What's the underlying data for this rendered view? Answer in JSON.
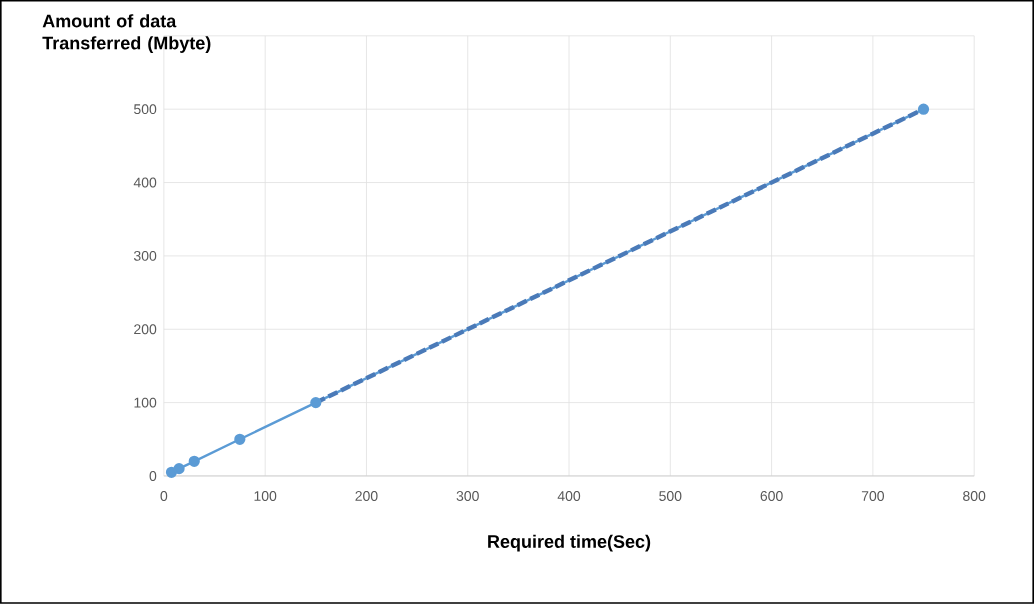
{
  "chart_data": {
    "type": "line",
    "ylabel": "Amount of data Transferred (Mbyte)",
    "xlabel": "Required  time(Sec)",
    "xlim": [
      0,
      800
    ],
    "xticks": [
      0,
      100,
      200,
      300,
      400,
      500,
      600,
      700,
      800
    ],
    "ylim": [
      0,
      600
    ],
    "yticks": [
      0,
      100,
      200,
      300,
      400,
      {
        "value": 500,
        "label": "500"
      },
      {
        "value": 600,
        "label": null
      }
    ],
    "grid": true,
    "marker": "circle",
    "series": [
      {
        "color": "#5b9bd5",
        "line_style": "solid",
        "x": [
          7.5,
          15,
          30,
          75,
          150,
          750
        ],
        "values": [
          5,
          10,
          20,
          50,
          100,
          500
        ]
      },
      {
        "color": "#4a7ab8",
        "marker": "none",
        "line_style": "dashed",
        "x": [
          150,
          750
        ],
        "values": [
          100,
          500
        ]
      }
    ]
  }
}
